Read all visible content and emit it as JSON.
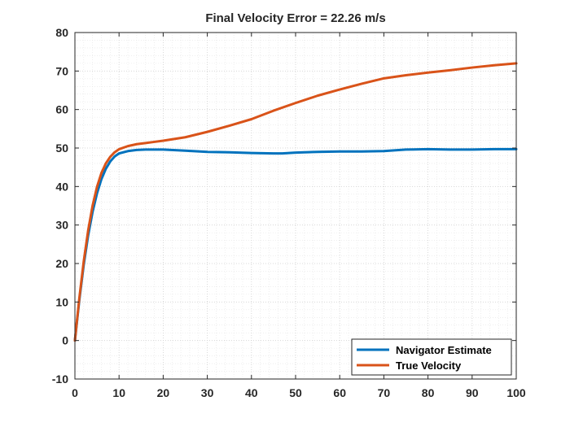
{
  "chart_data": {
    "type": "line",
    "title": "Final Velocity Error = 22.26 m/s",
    "xlabel": "",
    "ylabel": "",
    "xlim": [
      0,
      100
    ],
    "ylim": [
      -10,
      80
    ],
    "xticks": [
      "0",
      "10",
      "20",
      "30",
      "40",
      "50",
      "60",
      "70",
      "80",
      "90",
      "100"
    ],
    "yticks": [
      "-10",
      "0",
      "10",
      "20",
      "30",
      "40",
      "50",
      "60",
      "70",
      "80"
    ],
    "grid": "on (major and minor dotted)",
    "legend_position": "bottom-right",
    "series": [
      {
        "name": "Navigator Estimate",
        "color": "#0072BD",
        "x": [
          0,
          1,
          2,
          3,
          4,
          5,
          6,
          7,
          8,
          9,
          10,
          12,
          14,
          16,
          18,
          20,
          25,
          30,
          35,
          40,
          45,
          47,
          50,
          55,
          60,
          65,
          70,
          75,
          80,
          85,
          90,
          95,
          100
        ],
        "y": [
          0,
          10.5,
          19.7,
          27.3,
          33.4,
          38.2,
          41.9,
          44.6,
          46.5,
          47.8,
          48.6,
          49.2,
          49.5,
          49.6,
          49.6,
          49.6,
          49.3,
          49.0,
          48.9,
          48.7,
          48.6,
          48.6,
          48.8,
          49.0,
          49.1,
          49.1,
          49.2,
          49.6,
          49.7,
          49.6,
          49.6,
          49.7,
          49.7
        ]
      },
      {
        "name": "True Velocity",
        "color": "#D95319",
        "x": [
          0,
          1,
          2,
          3,
          4,
          5,
          6,
          7,
          8,
          9,
          10,
          12,
          14,
          16,
          18,
          20,
          25,
          30,
          35,
          40,
          45,
          50,
          55,
          60,
          65,
          70,
          75,
          80,
          85,
          90,
          95,
          100
        ],
        "y": [
          0,
          11.0,
          20.6,
          28.6,
          35.0,
          39.9,
          43.5,
          46.0,
          47.7,
          48.9,
          49.7,
          50.5,
          51.0,
          51.3,
          51.6,
          51.9,
          52.8,
          54.2,
          55.8,
          57.5,
          59.7,
          61.7,
          63.6,
          65.2,
          66.7,
          68.1,
          68.9,
          69.6,
          70.2,
          70.9,
          71.5,
          72.0
        ]
      }
    ]
  }
}
